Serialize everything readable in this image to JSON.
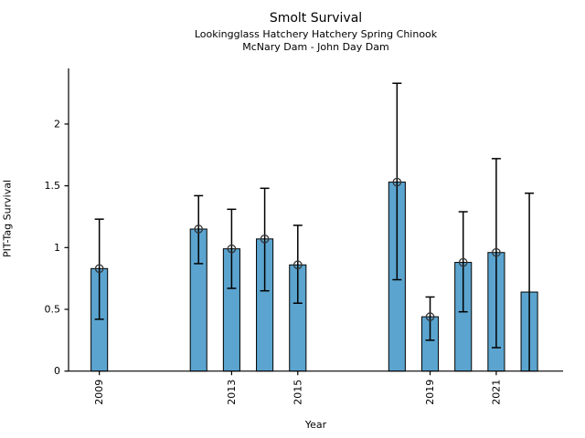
{
  "title": "Smolt Survival",
  "subtitle_line1": "Lookingglass Hatchery Hatchery Spring Chinook",
  "subtitle_line2": "McNary Dam - John Day Dam",
  "chart_data": {
    "type": "bar",
    "title": "Smolt Survival",
    "subtitle": [
      "Lookingglass Hatchery Hatchery Spring Chinook",
      "McNary Dam - John Day Dam"
    ],
    "xlabel": "Year",
    "ylabel": "PIT-Tag Survival",
    "x": [
      2009,
      2012,
      2013,
      2014,
      2015,
      2018,
      2019,
      2020,
      2021,
      2022
    ],
    "values": [
      0.83,
      1.15,
      0.99,
      1.07,
      0.86,
      1.53,
      0.44,
      0.88,
      0.96,
      0.64
    ],
    "error_low": [
      0.42,
      0.87,
      0.67,
      0.65,
      0.55,
      0.74,
      0.25,
      0.48,
      0.19,
      0.0
    ],
    "error_high": [
      1.23,
      1.42,
      1.31,
      1.48,
      1.18,
      2.33,
      0.6,
      1.29,
      1.72,
      1.44
    ],
    "point_marker": [
      true,
      true,
      true,
      true,
      true,
      true,
      true,
      true,
      true,
      false
    ],
    "x_ticks": [
      2009,
      2013,
      2015,
      2019,
      2021
    ],
    "x_tick_labels": [
      "2009",
      "2013",
      "2015",
      "2019",
      "2021"
    ],
    "y_ticks": [
      0,
      0.5,
      1,
      1.5,
      2
    ],
    "y_tick_labels": [
      "0",
      "0.5",
      "1",
      "1.5",
      "2"
    ],
    "xlim": [
      2008.07,
      2023.02
    ],
    "ylim": [
      0,
      2.45
    ],
    "bar_width_years": 0.5,
    "grid": false,
    "legend_position": "none",
    "colors": {
      "bar_fill": "#5BA4CF",
      "bar_edge": "#000000",
      "error_line": "#000000",
      "marker_edge": "#333333",
      "axis": "#000000",
      "text": "#000000"
    }
  }
}
